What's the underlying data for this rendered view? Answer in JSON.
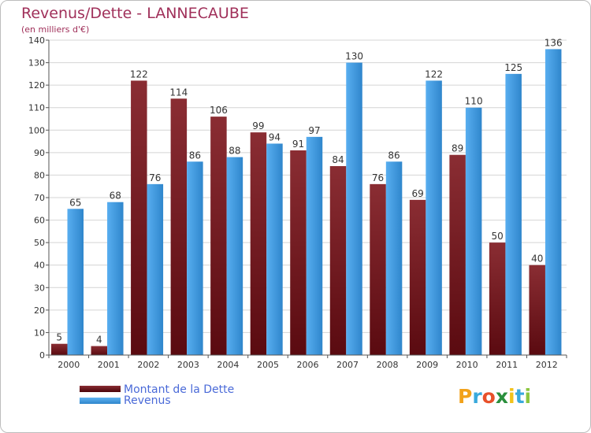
{
  "title": "Revenus/Dette - LANNECAUBE",
  "subtitle": "(en milliers d'€)",
  "colors": {
    "dette": "#7a1f25",
    "revenus": "#3d9ae0",
    "title": "#a0305a",
    "legend_text": "#4a6ad8"
  },
  "logo": {
    "text": "Proxiti",
    "letters": [
      "P",
      "r",
      "o",
      "x",
      "i",
      "t",
      "i"
    ],
    "colors": [
      "#f2a21b",
      "#39a9dc",
      "#e8502a",
      "#2a8f3c",
      "#f2c21b",
      "#39a9dc",
      "#8cc63f"
    ]
  },
  "legend": [
    {
      "label": "Montant de la Dette",
      "color": "#6e0f16"
    },
    {
      "label": "Revenus",
      "color": "#3d9ae0"
    }
  ],
  "chart_data": {
    "type": "bar",
    "categories": [
      "2000",
      "2001",
      "2002",
      "2003",
      "2004",
      "2005",
      "2006",
      "2007",
      "2008",
      "2009",
      "2010",
      "2011",
      "2012"
    ],
    "series": [
      {
        "name": "Montant de la Dette",
        "values": [
          5,
          4,
          122,
          114,
          106,
          99,
          91,
          84,
          76,
          69,
          89,
          50,
          40
        ]
      },
      {
        "name": "Revenus",
        "values": [
          65,
          68,
          76,
          86,
          88,
          94,
          97,
          130,
          86,
          122,
          110,
          125,
          136
        ]
      }
    ],
    "yticks": [
      0,
      10,
      20,
      30,
      40,
      50,
      60,
      70,
      80,
      90,
      100,
      110,
      120,
      130,
      140
    ],
    "ylim": [
      0,
      140
    ],
    "grid": true,
    "legend_position": "bottom-left"
  }
}
